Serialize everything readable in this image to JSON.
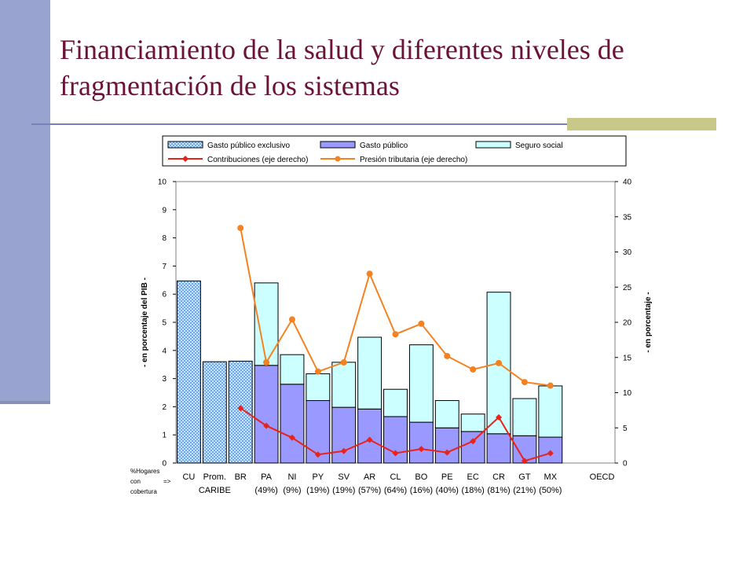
{
  "slide": {
    "title": "Financiamiento de la salud y diferentes niveles de fragmentación de los sistemas"
  },
  "colors": {
    "title": "#6b1238",
    "accent_bar": "#99a3cf",
    "accent_block": "#c8c888",
    "gasto_publico_exclusivo": "#99ccff",
    "gasto_publico": "#9999ff",
    "seguro_social": "#ccffff",
    "contribuciones": "#e8231a",
    "presion_tributaria": "#f58220"
  },
  "chart_data": {
    "type": "bar",
    "stacked": true,
    "categories": [
      "CU",
      "Prom.",
      "BR",
      "PA",
      "NI",
      "PY",
      "SV",
      "AR",
      "CL",
      "BO",
      "PE",
      "EC",
      "CR",
      "GT",
      "MX",
      "",
      "OECD"
    ],
    "category_sublabels": [
      "",
      "CARIBE",
      "",
      "(49%)",
      "(9%)",
      "(19%)",
      "(19%)",
      "(57%)",
      "(64%)",
      "(16%)",
      "(40%)",
      "(18%)",
      "(81%)",
      "(21%)",
      "(50%)",
      "",
      ""
    ],
    "row_label": "%Hogares con => cobertura",
    "ylabel": "- en porcentaje del PIB -",
    "y2label": "- en porcentaje -",
    "ylim": [
      0,
      10
    ],
    "y2lim": [
      0,
      40
    ],
    "yticks": [
      0,
      1,
      2,
      3,
      4,
      5,
      6,
      7,
      8,
      9,
      10
    ],
    "y2ticks": [
      0,
      5,
      10,
      15,
      20,
      25,
      30,
      35,
      40
    ],
    "legend": [
      "Gasto público exclusivo",
      "Gasto público",
      "Seguro social",
      "Contribuciones (eje derecho)",
      "Presión tributaria (eje derecho)"
    ],
    "legend_position": "top",
    "series": [
      {
        "name": "Gasto público exclusivo",
        "kind": "bar",
        "axis": "left",
        "values": [
          6.47,
          3.6,
          3.62,
          null,
          null,
          null,
          null,
          null,
          null,
          null,
          null,
          null,
          null,
          null,
          null,
          null,
          null
        ]
      },
      {
        "name": "Gasto público",
        "kind": "bar",
        "axis": "left",
        "values": [
          null,
          null,
          null,
          3.47,
          2.8,
          2.22,
          1.98,
          1.92,
          1.65,
          1.45,
          1.25,
          1.12,
          1.04,
          0.97,
          0.92,
          null,
          null
        ]
      },
      {
        "name": "Seguro social",
        "kind": "bar",
        "axis": "left",
        "values": [
          null,
          null,
          null,
          2.93,
          1.05,
          0.95,
          1.6,
          2.55,
          0.97,
          2.75,
          0.97,
          0.62,
          5.03,
          1.32,
          1.82,
          null,
          null
        ]
      },
      {
        "name": "Contribuciones (eje derecho)",
        "kind": "line",
        "axis": "right",
        "values": [
          null,
          null,
          7.8,
          5.3,
          3.6,
          1.2,
          1.7,
          3.3,
          1.4,
          2.0,
          1.5,
          3.1,
          6.5,
          0.3,
          1.4,
          null,
          null
        ]
      },
      {
        "name": "Presión tributaria (eje derecho)",
        "kind": "line",
        "axis": "right",
        "values": [
          null,
          null,
          33.4,
          14.3,
          20.4,
          13.0,
          14.3,
          26.9,
          18.3,
          19.8,
          15.2,
          13.3,
          14.2,
          11.5,
          11.0,
          null,
          null
        ]
      }
    ]
  }
}
